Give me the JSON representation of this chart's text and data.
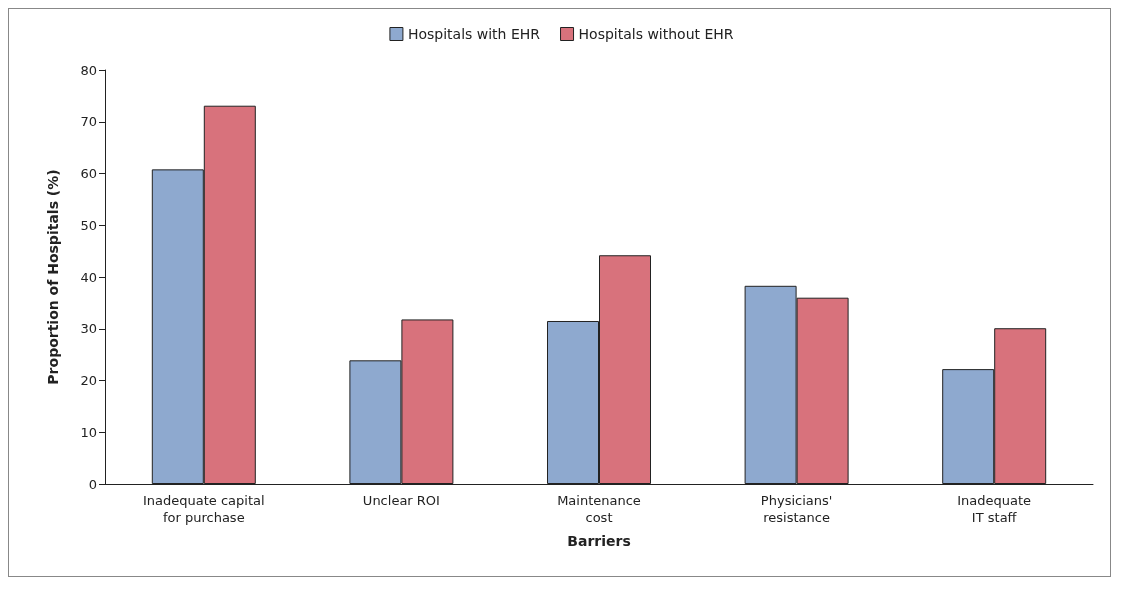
{
  "chart_data": {
    "type": "bar",
    "xlabel": "Barriers",
    "ylabel": "Proportion of Hospitals (%)",
    "categories": [
      "Inadequate capital\nfor purchase",
      "Unclear ROI",
      "Maintenance\ncost",
      "Physicians'\nresistance",
      "Inadequate\nIT staff"
    ],
    "series": [
      {
        "name": "Hospitals with EHR",
        "color": "#8ea9cf",
        "values": [
          60.8,
          23.9,
          31.5,
          38.3,
          22.2
        ]
      },
      {
        "name": "Hospitals without EHR",
        "color": "#d8727c",
        "values": [
          73.1,
          31.8,
          44.2,
          36.0,
          30.1
        ]
      }
    ],
    "ylim": [
      0,
      80
    ],
    "yticks": [
      0,
      10,
      20,
      30,
      40,
      50,
      60,
      70,
      80
    ],
    "grid": false,
    "legend": "top"
  }
}
